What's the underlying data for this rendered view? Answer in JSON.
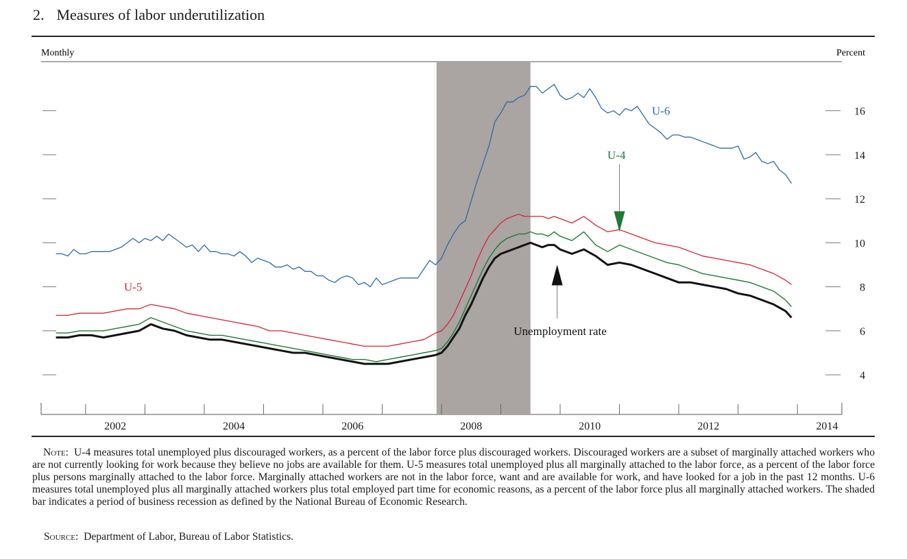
{
  "figure": {
    "number": "2.",
    "title": "Measures of labor underutilization"
  },
  "note": {
    "label": "Note:",
    "text": "U-4 measures total unemployed plus discouraged workers, as a percent of the labor force plus discouraged workers. Discouraged workers are a subset of marginally attached workers who are not currently looking for work because they believe no jobs are available for them. U-5 measures total unemployed plus all marginally attached to the labor force, as a percent of the labor force plus persons marginally attached to the labor force. Marginally attached workers are not in the labor force, want and are available for work, and have looked for a job in the past 12 months. U-6 measures total unemployed plus all marginally attached workers plus total employed part time for economic reasons, as a percent of the labor force plus all marginally attached workers. The shaded bar indicates a period of business recession as defined by the National Bureau of Economic Research."
  },
  "source": {
    "label": "Source:",
    "text": "Department of Labor, Bureau of Labor Statistics."
  },
  "chart_data": {
    "type": "line",
    "frequency_label": "Monthly",
    "unit_label": "Percent",
    "x_tick_labels": [
      "2002",
      "2004",
      "2006",
      "2008",
      "2010",
      "2012",
      "2014"
    ],
    "y_ticks": [
      4,
      6,
      8,
      10,
      12,
      14,
      16
    ],
    "xlim": [
      2001.25,
      2014.75
    ],
    "ylim": [
      2.2,
      18.2
    ],
    "grid": false,
    "recession": {
      "start": 2007.917,
      "end": 2009.5
    },
    "colors": {
      "U-6": "#2e6aa3",
      "U-5": "#d62433",
      "U-4": "#1f7a35",
      "Unemployment rate": "#111111",
      "recession": "#aaa4a2"
    },
    "annotations": [
      {
        "text": "U-6",
        "x": 2011.7,
        "y": 16,
        "color": "#2e6aa3"
      },
      {
        "text": "U-5",
        "x": 2002.8,
        "y": 8,
        "color": "#d62433"
      },
      {
        "text": "U-4",
        "x": 2010.95,
        "y": 14,
        "color": "#1f7a35",
        "arrow_to": [
          2011.0,
          10.5
        ]
      },
      {
        "text": "Unemployment rate",
        "x": 2010.0,
        "y": 6,
        "color": "#111111",
        "arrow_to": [
          2009.95,
          9.0
        ]
      }
    ],
    "series": [
      {
        "name": "U-6",
        "x": [
          2001.5,
          2001.6,
          2001.7,
          2001.8,
          2001.9,
          2002.0,
          2002.1,
          2002.2,
          2002.3,
          2002.4,
          2002.5,
          2002.6,
          2002.7,
          2002.8,
          2002.9,
          2003.0,
          2003.1,
          2003.2,
          2003.3,
          2003.4,
          2003.5,
          2003.6,
          2003.7,
          2003.8,
          2003.9,
          2004.0,
          2004.1,
          2004.2,
          2004.3,
          2004.4,
          2004.5,
          2004.6,
          2004.7,
          2004.8,
          2004.9,
          2005.0,
          2005.1,
          2005.2,
          2005.3,
          2005.4,
          2005.5,
          2005.6,
          2005.7,
          2005.8,
          2005.9,
          2006.0,
          2006.1,
          2006.2,
          2006.3,
          2006.4,
          2006.5,
          2006.6,
          2006.7,
          2006.8,
          2006.9,
          2007.0,
          2007.1,
          2007.2,
          2007.3,
          2007.4,
          2007.5,
          2007.6,
          2007.7,
          2007.8,
          2007.9,
          2008.0,
          2008.1,
          2008.2,
          2008.3,
          2008.4,
          2008.5,
          2008.6,
          2008.7,
          2008.8,
          2008.9,
          2009.0,
          2009.1,
          2009.2,
          2009.3,
          2009.4,
          2009.5,
          2009.6,
          2009.7,
          2009.8,
          2009.9,
          2010.0,
          2010.1,
          2010.2,
          2010.3,
          2010.4,
          2010.5,
          2010.6,
          2010.7,
          2010.8,
          2010.9,
          2011.0,
          2011.1,
          2011.2,
          2011.3,
          2011.4,
          2011.5,
          2011.6,
          2011.7,
          2011.8,
          2011.9,
          2012.0,
          2012.1,
          2012.2,
          2012.3,
          2012.4,
          2012.5,
          2012.6,
          2012.7,
          2012.8,
          2012.9,
          2013.0,
          2013.1,
          2013.2,
          2013.3,
          2013.4,
          2013.5,
          2013.6,
          2013.7,
          2013.8,
          2013.9
        ],
        "values": [
          9.5,
          9.5,
          9.4,
          9.7,
          9.5,
          9.5,
          9.6,
          9.6,
          9.6,
          9.6,
          9.7,
          9.8,
          10.0,
          10.2,
          10.0,
          10.2,
          10.1,
          10.3,
          10.1,
          10.4,
          10.2,
          10.0,
          9.8,
          9.9,
          9.6,
          9.9,
          9.6,
          9.6,
          9.5,
          9.5,
          9.4,
          9.6,
          9.4,
          9.1,
          9.3,
          9.2,
          9.1,
          8.9,
          8.9,
          9.0,
          8.8,
          8.9,
          8.7,
          8.7,
          8.5,
          8.5,
          8.3,
          8.2,
          8.4,
          8.5,
          8.4,
          8.1,
          8.2,
          8.0,
          8.4,
          8.1,
          8.2,
          8.3,
          8.4,
          8.4,
          8.4,
          8.4,
          8.8,
          9.2,
          9.0,
          9.3,
          9.9,
          10.4,
          10.8,
          11.0,
          11.9,
          12.8,
          13.6,
          14.4,
          15.5,
          15.9,
          16.4,
          16.4,
          16.6,
          16.7,
          17.1,
          17.1,
          16.8,
          17.0,
          17.2,
          16.7,
          16.5,
          16.6,
          16.8,
          16.6,
          17.0,
          16.6,
          16.1,
          15.9,
          16.0,
          15.8,
          16.1,
          16.0,
          16.2,
          15.8,
          15.4,
          15.2,
          15.0,
          14.7,
          14.9,
          14.9,
          14.8,
          14.8,
          14.7,
          14.6,
          14.5,
          14.4,
          14.3,
          14.3,
          14.3,
          14.4,
          13.8,
          13.9,
          14.1,
          13.7,
          13.6,
          13.7,
          13.3,
          13.1,
          12.7
        ]
      },
      {
        "name": "U-5",
        "x": [
          2001.5,
          2001.7,
          2001.9,
          2002.1,
          2002.3,
          2002.5,
          2002.7,
          2002.9,
          2003.1,
          2003.3,
          2003.5,
          2003.7,
          2003.9,
          2004.1,
          2004.3,
          2004.5,
          2004.7,
          2004.9,
          2005.1,
          2005.3,
          2005.5,
          2005.7,
          2005.9,
          2006.1,
          2006.3,
          2006.5,
          2006.7,
          2006.9,
          2007.1,
          2007.3,
          2007.5,
          2007.7,
          2007.9,
          2008.0,
          2008.1,
          2008.2,
          2008.3,
          2008.4,
          2008.5,
          2008.6,
          2008.7,
          2008.8,
          2008.9,
          2009.0,
          2009.1,
          2009.2,
          2009.3,
          2009.4,
          2009.5,
          2009.6,
          2009.7,
          2009.8,
          2009.9,
          2010.0,
          2010.2,
          2010.4,
          2010.6,
          2010.8,
          2011.0,
          2011.2,
          2011.4,
          2011.6,
          2011.8,
          2012.0,
          2012.2,
          2012.4,
          2012.6,
          2012.8,
          2013.0,
          2013.2,
          2013.4,
          2013.6,
          2013.8,
          2013.9
        ],
        "values": [
          6.7,
          6.7,
          6.8,
          6.8,
          6.8,
          6.9,
          7.0,
          7.0,
          7.2,
          7.1,
          7.0,
          6.8,
          6.7,
          6.6,
          6.5,
          6.4,
          6.3,
          6.2,
          6.0,
          6.0,
          5.9,
          5.8,
          5.7,
          5.6,
          5.5,
          5.4,
          5.3,
          5.3,
          5.3,
          5.4,
          5.5,
          5.6,
          5.9,
          6.0,
          6.3,
          6.7,
          7.3,
          7.9,
          8.5,
          9.2,
          9.8,
          10.3,
          10.6,
          10.9,
          11.1,
          11.2,
          11.3,
          11.2,
          11.2,
          11.2,
          11.2,
          11.1,
          11.2,
          11.1,
          10.9,
          11.2,
          10.8,
          10.5,
          10.6,
          10.4,
          10.2,
          10.0,
          9.9,
          9.8,
          9.6,
          9.4,
          9.3,
          9.2,
          9.1,
          9.0,
          8.8,
          8.6,
          8.3,
          8.1
        ]
      },
      {
        "name": "U-4",
        "x": [
          2001.5,
          2001.7,
          2001.9,
          2002.1,
          2002.3,
          2002.5,
          2002.7,
          2002.9,
          2003.1,
          2003.3,
          2003.5,
          2003.7,
          2003.9,
          2004.1,
          2004.3,
          2004.5,
          2004.7,
          2004.9,
          2005.1,
          2005.3,
          2005.5,
          2005.7,
          2005.9,
          2006.1,
          2006.3,
          2006.5,
          2006.7,
          2006.9,
          2007.1,
          2007.3,
          2007.5,
          2007.7,
          2007.9,
          2008.0,
          2008.1,
          2008.2,
          2008.3,
          2008.4,
          2008.5,
          2008.6,
          2008.7,
          2008.8,
          2008.9,
          2009.0,
          2009.1,
          2009.2,
          2009.3,
          2009.4,
          2009.5,
          2009.6,
          2009.7,
          2009.8,
          2009.9,
          2010.0,
          2010.2,
          2010.4,
          2010.6,
          2010.8,
          2011.0,
          2011.2,
          2011.4,
          2011.6,
          2011.8,
          2012.0,
          2012.2,
          2012.4,
          2012.6,
          2012.8,
          2013.0,
          2013.2,
          2013.4,
          2013.6,
          2013.8,
          2013.9
        ],
        "values": [
          5.9,
          5.9,
          6.0,
          6.0,
          6.0,
          6.1,
          6.2,
          6.3,
          6.6,
          6.4,
          6.2,
          6.0,
          5.9,
          5.8,
          5.8,
          5.7,
          5.6,
          5.5,
          5.4,
          5.3,
          5.2,
          5.1,
          5.0,
          4.9,
          4.8,
          4.7,
          4.7,
          4.6,
          4.7,
          4.8,
          4.9,
          5.0,
          5.1,
          5.2,
          5.5,
          5.9,
          6.4,
          7.0,
          7.6,
          8.2,
          8.8,
          9.3,
          9.7,
          10.0,
          10.2,
          10.3,
          10.4,
          10.4,
          10.5,
          10.4,
          10.4,
          10.3,
          10.5,
          10.3,
          10.1,
          10.5,
          9.9,
          9.6,
          9.9,
          9.7,
          9.5,
          9.3,
          9.1,
          9.0,
          8.8,
          8.6,
          8.5,
          8.4,
          8.3,
          8.2,
          8.0,
          7.8,
          7.4,
          7.1
        ]
      },
      {
        "name": "Unemployment rate",
        "x": [
          2001.5,
          2001.7,
          2001.9,
          2002.1,
          2002.3,
          2002.5,
          2002.7,
          2002.9,
          2003.1,
          2003.3,
          2003.5,
          2003.7,
          2003.9,
          2004.1,
          2004.3,
          2004.5,
          2004.7,
          2004.9,
          2005.1,
          2005.3,
          2005.5,
          2005.7,
          2005.9,
          2006.1,
          2006.3,
          2006.5,
          2006.7,
          2006.9,
          2007.1,
          2007.3,
          2007.5,
          2007.7,
          2007.9,
          2008.0,
          2008.1,
          2008.2,
          2008.3,
          2008.4,
          2008.5,
          2008.6,
          2008.7,
          2008.8,
          2008.9,
          2009.0,
          2009.1,
          2009.2,
          2009.3,
          2009.4,
          2009.5,
          2009.6,
          2009.7,
          2009.8,
          2009.9,
          2010.0,
          2010.2,
          2010.4,
          2010.6,
          2010.8,
          2011.0,
          2011.2,
          2011.4,
          2011.6,
          2011.8,
          2012.0,
          2012.2,
          2012.4,
          2012.6,
          2012.8,
          2013.0,
          2013.2,
          2013.4,
          2013.6,
          2013.8,
          2013.9
        ],
        "values": [
          5.7,
          5.7,
          5.8,
          5.8,
          5.7,
          5.8,
          5.9,
          6.0,
          6.3,
          6.1,
          6.0,
          5.8,
          5.7,
          5.6,
          5.6,
          5.5,
          5.4,
          5.3,
          5.2,
          5.1,
          5.0,
          5.0,
          4.9,
          4.8,
          4.7,
          4.6,
          4.5,
          4.5,
          4.5,
          4.6,
          4.7,
          4.8,
          4.9,
          5.0,
          5.3,
          5.7,
          6.1,
          6.7,
          7.2,
          7.8,
          8.4,
          8.9,
          9.3,
          9.5,
          9.6,
          9.7,
          9.8,
          9.9,
          10.0,
          9.9,
          9.8,
          9.9,
          9.9,
          9.7,
          9.5,
          9.7,
          9.4,
          9.0,
          9.1,
          9.0,
          8.8,
          8.6,
          8.4,
          8.2,
          8.2,
          8.1,
          8.0,
          7.9,
          7.7,
          7.6,
          7.4,
          7.2,
          6.9,
          6.6
        ]
      }
    ]
  }
}
